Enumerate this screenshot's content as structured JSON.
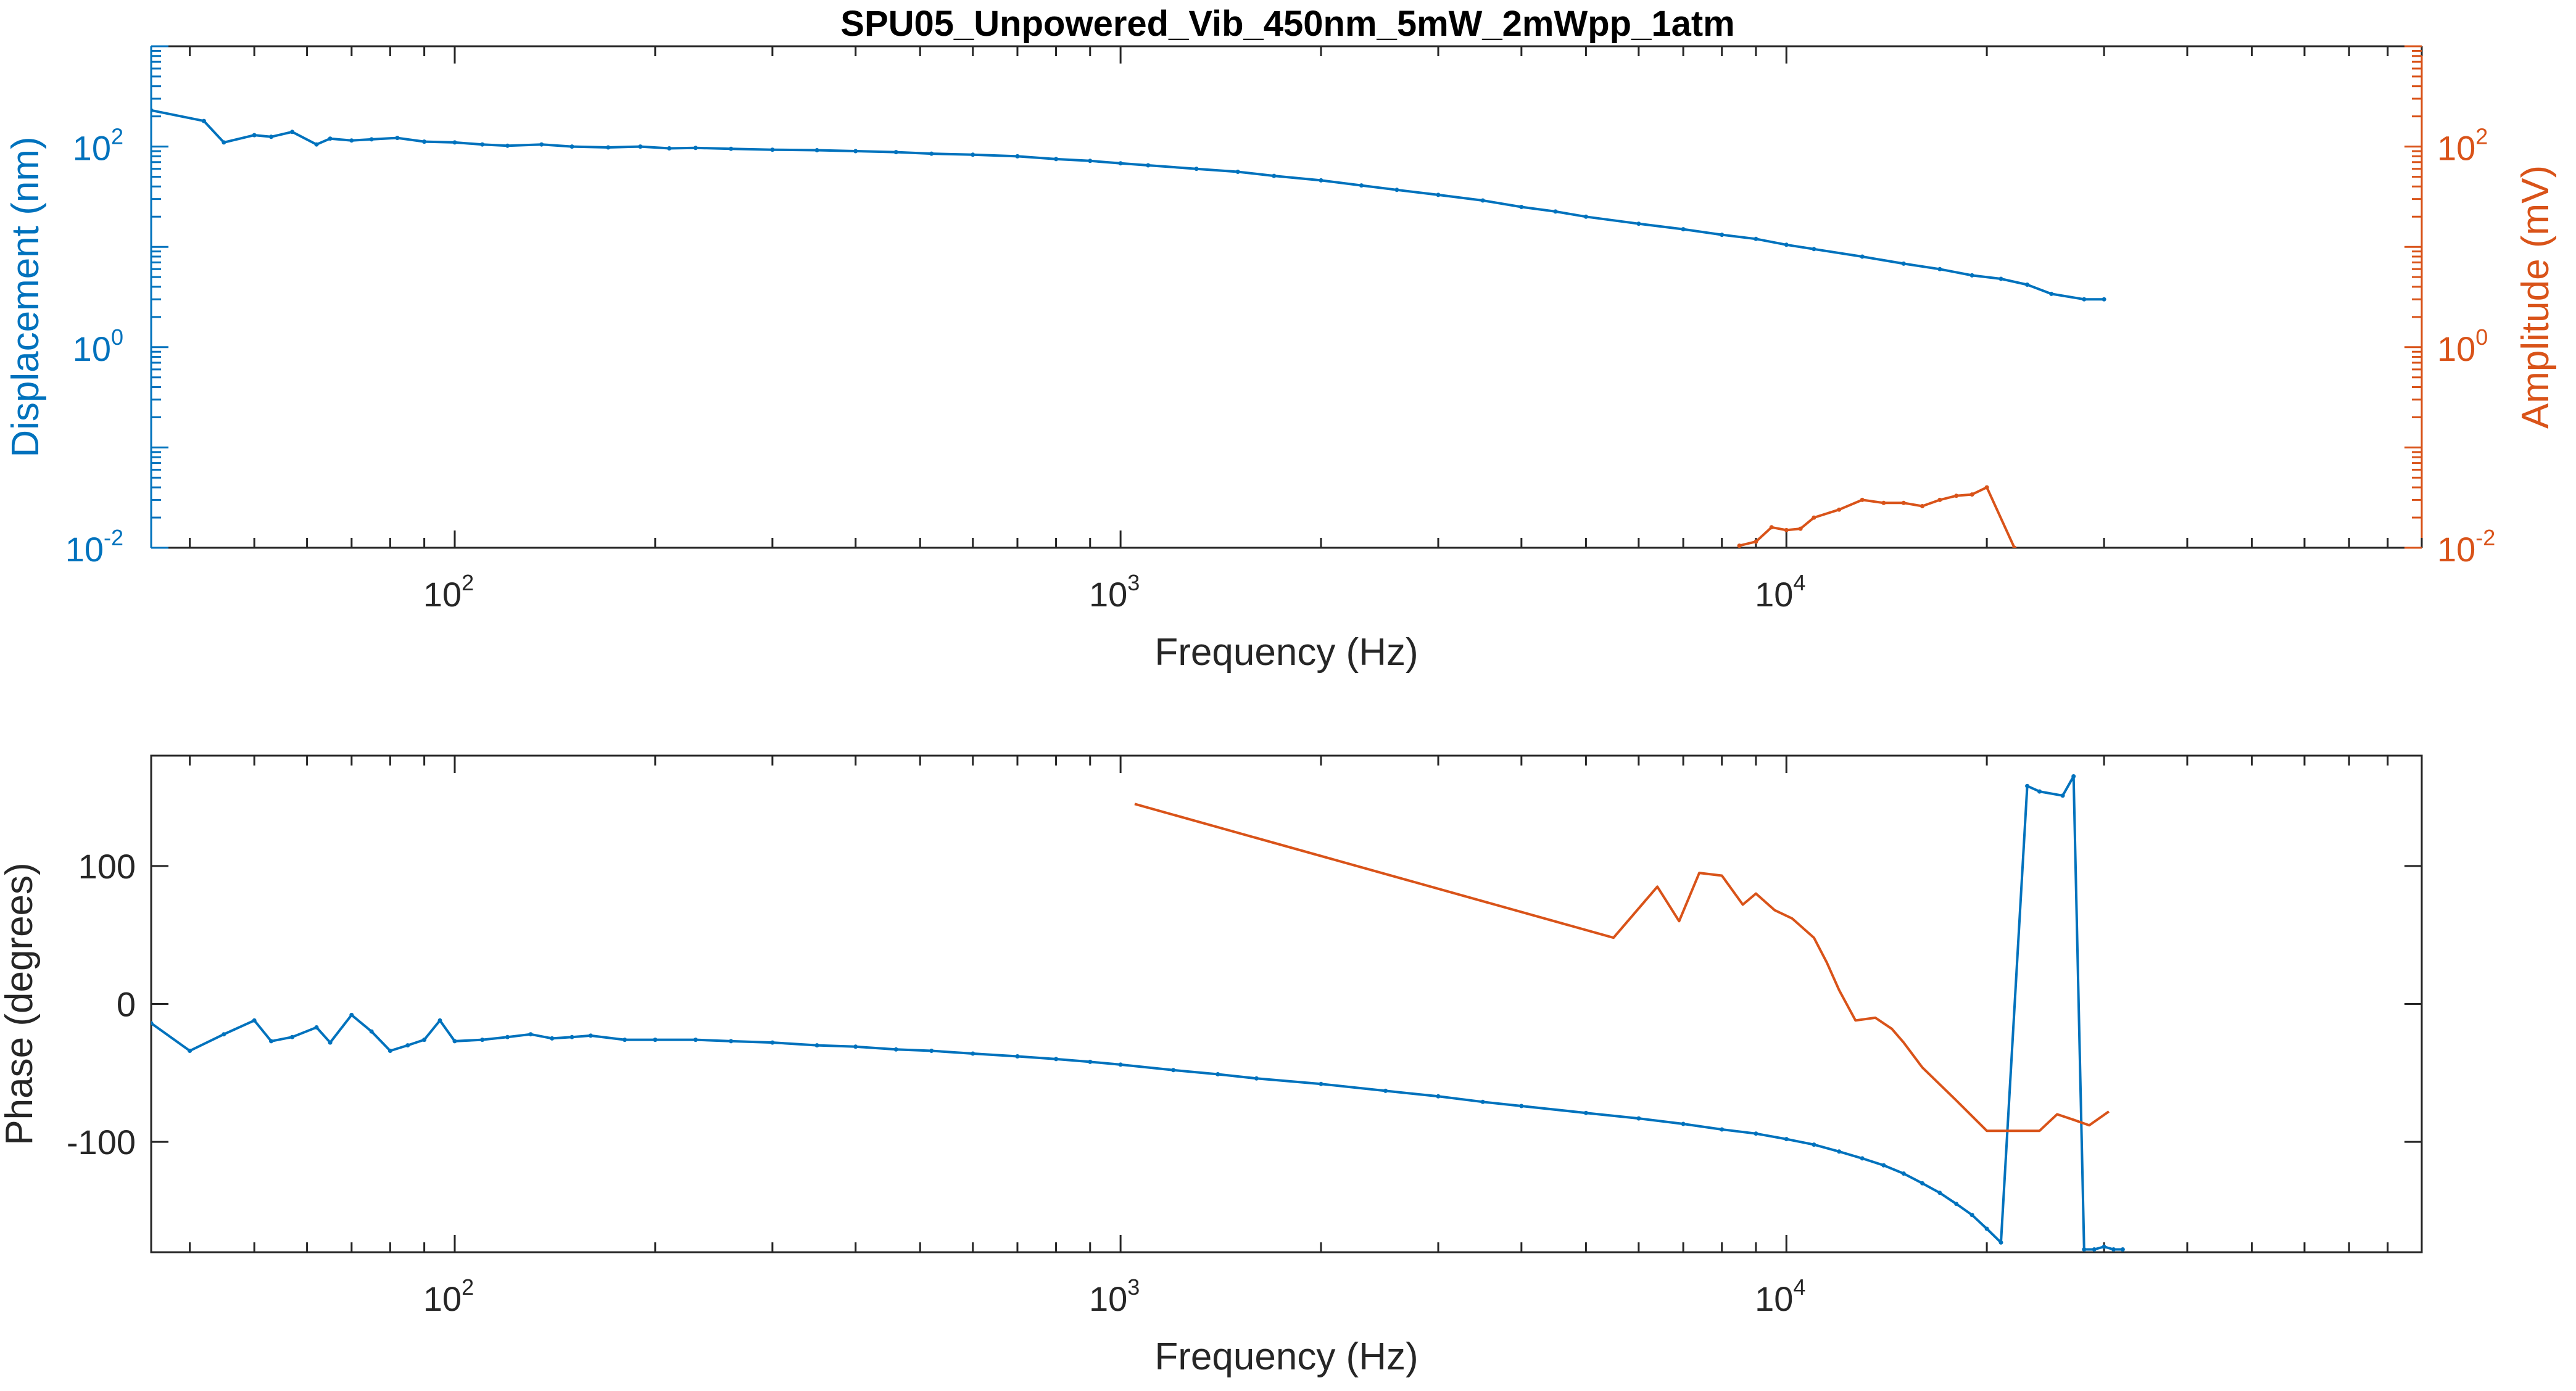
{
  "chart_data": [
    {
      "type": "line",
      "title": "SPU05_Unpowered_Vib_450nm_5mW_2mWpp_1atm",
      "xlabel": "Frequency (Hz)",
      "ylabel": "Displacement (nm)",
      "ylabel_right": "Amplitude (mV)",
      "x_scale": "log",
      "y_scale": "log",
      "y_right_scale": "log",
      "xlim": [
        35,
        90000
      ],
      "ylim": [
        0.01,
        1000
      ],
      "ylim_right": [
        0.01,
        1000
      ],
      "xticks": [
        {
          "label": "10",
          "exp": "2",
          "value": 100
        },
        {
          "label": "10",
          "exp": "3",
          "value": 1000
        },
        {
          "label": "10",
          "exp": "4",
          "value": 10000
        }
      ],
      "yticks": [
        {
          "label": "10",
          "exp": "-2",
          "value": 0.01
        },
        {
          "label": "10",
          "exp": "0",
          "value": 1
        },
        {
          "label": "10",
          "exp": "2",
          "value": 100
        }
      ],
      "yticks_right": [
        {
          "label": "10",
          "exp": "-2",
          "value": 0.01
        },
        {
          "label": "10",
          "exp": "0",
          "value": 1
        },
        {
          "label": "10",
          "exp": "2",
          "value": 100
        }
      ],
      "grid": false,
      "colors": {
        "displacement": "#0072BD",
        "amplitude": "#D95319",
        "axes": "#262626"
      },
      "series": [
        {
          "axis": "left",
          "color": "#0072BD",
          "markers": true,
          "x": [
            35,
            42,
            45,
            50,
            53,
            57,
            62,
            65,
            70,
            75,
            82,
            90,
            100,
            110,
            120,
            135,
            150,
            170,
            190,
            210,
            230,
            260,
            300,
            350,
            400,
            460,
            520,
            600,
            700,
            800,
            900,
            1000,
            1100,
            1300,
            1500,
            1700,
            2000,
            2300,
            2600,
            3000,
            3500,
            4000,
            4500,
            5000,
            6000,
            7000,
            8000,
            9000,
            10000,
            11000,
            13000,
            15000,
            17000,
            19000,
            21000,
            23000,
            25000,
            28000,
            30000
          ],
          "y": [
            230,
            180,
            110,
            130,
            125,
            140,
            105,
            120,
            115,
            118,
            122,
            112,
            110,
            105,
            102,
            105,
            100,
            98,
            100,
            96,
            97,
            95,
            93,
            92,
            90,
            88,
            85,
            83,
            80,
            75,
            72,
            68,
            65,
            60,
            56,
            51,
            46,
            41,
            37,
            33,
            29,
            25,
            22.5,
            20,
            17,
            15,
            13.2,
            12,
            10.5,
            9.5,
            8,
            6.8,
            6,
            5.2,
            4.8,
            4.2,
            3.4,
            3,
            3
          ]
        },
        {
          "axis": "right",
          "color": "#D95319",
          "markers": true,
          "x": [
            8500,
            9000,
            9500,
            10000,
            10500,
            11000,
            12000,
            13000,
            14000,
            15000,
            16000,
            17000,
            18000,
            19000,
            20000,
            22000
          ],
          "y": [
            0.0105,
            0.0115,
            0.016,
            0.015,
            0.0155,
            0.02,
            0.024,
            0.03,
            0.028,
            0.028,
            0.026,
            0.03,
            0.033,
            0.034,
            0.04,
            0.01
          ]
        }
      ]
    },
    {
      "type": "line",
      "xlabel": "Frequency (Hz)",
      "ylabel": "Phase (degrees)",
      "x_scale": "log",
      "xlim": [
        35,
        90000
      ],
      "ylim": [
        -180,
        180
      ],
      "xticks": [
        {
          "label": "10",
          "exp": "2",
          "value": 100
        },
        {
          "label": "10",
          "exp": "3",
          "value": 1000
        },
        {
          "label": "10",
          "exp": "4",
          "value": 10000
        }
      ],
      "yticks": [
        {
          "label": "-100",
          "value": -100
        },
        {
          "label": "0",
          "value": 0
        },
        {
          "label": "100",
          "value": 100
        }
      ],
      "grid": false,
      "colors": {
        "displacement": "#0072BD",
        "amplitude": "#D95319",
        "axes": "#262626"
      },
      "series": [
        {
          "color": "#0072BD",
          "markers": true,
          "x": [
            35,
            40,
            45,
            50,
            53,
            57,
            62,
            65,
            70,
            75,
            80,
            85,
            90,
            95,
            100,
            110,
            120,
            130,
            140,
            150,
            160,
            180,
            200,
            230,
            260,
            300,
            350,
            400,
            460,
            520,
            600,
            700,
            800,
            900,
            1000,
            1200,
            1400,
            1600,
            2000,
            2500,
            3000,
            3500,
            4000,
            5000,
            6000,
            7000,
            8000,
            9000,
            10000,
            11000,
            12000,
            13000,
            14000,
            15000,
            16000,
            17000,
            18000,
            19000,
            20000,
            21000,
            23000,
            24000,
            26000,
            27000,
            28000,
            29000,
            30000,
            31000,
            32000
          ],
          "y": [
            -14,
            -34,
            -22,
            -12,
            -27,
            -24,
            -17,
            -28,
            -8,
            -20,
            -34,
            -30,
            -26,
            -12,
            -27,
            -26,
            -24,
            -22,
            -25,
            -24,
            -23,
            -26,
            -26,
            -26,
            -27,
            -28,
            -30,
            -31,
            -33,
            -34,
            -36,
            -38,
            -40,
            -42,
            -44,
            -48,
            -51,
            -54,
            -58,
            -63,
            -67,
            -71,
            -74,
            -79,
            -83,
            -87,
            -91,
            -94,
            -98,
            -102,
            -107,
            -112,
            -117,
            -123,
            -130,
            -137,
            -145,
            -153,
            -163,
            -173,
            158,
            154,
            151,
            165,
            -178,
            -178,
            -176,
            -178,
            -178
          ]
        },
        {
          "color": "#D95319",
          "markers": false,
          "x": [
            1050,
            5500,
            6400,
            6900,
            7400,
            8000,
            8600,
            9000,
            9600,
            10200,
            11000,
            11500,
            12000,
            12700,
            13600,
            14400,
            15000,
            16000,
            18000,
            20000,
            22000,
            24000,
            25500,
            27000,
            28500,
            30500
          ],
          "y": [
            145,
            48,
            85,
            60,
            95,
            93,
            72,
            80,
            68,
            62,
            48,
            30,
            10,
            -12,
            -10,
            -18,
            -28,
            -46,
            -70,
            -92,
            -92,
            -92,
            -80,
            -84,
            -88,
            -78
          ]
        }
      ]
    }
  ]
}
